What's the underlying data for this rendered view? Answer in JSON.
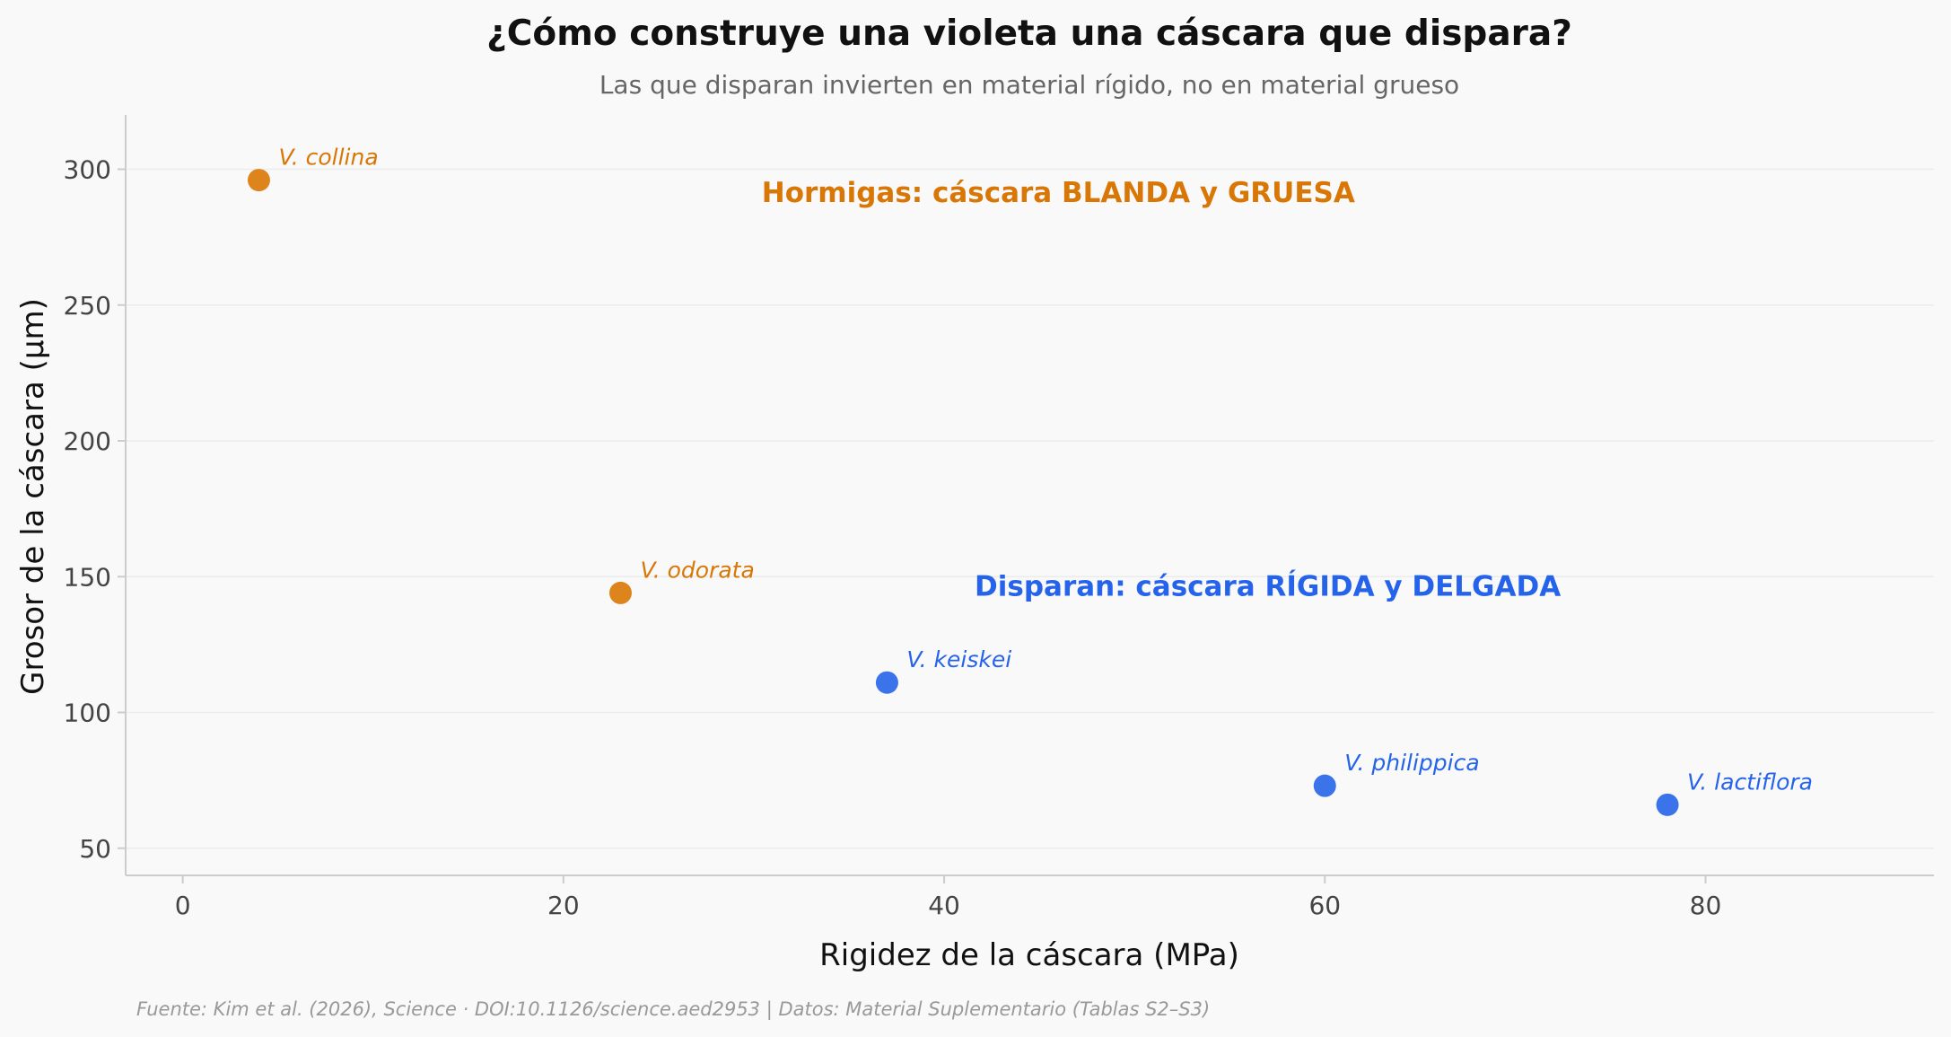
{
  "chart_data": {
    "type": "scatter",
    "title": "¿Cómo construye una violeta una cáscara que dispara?",
    "subtitle": "Las que disparan invierten en material rígido, no en material grueso",
    "xlabel": "Rigidez de la cáscara (MPa)",
    "ylabel": "Grosor de la cáscara (µm)",
    "xlim": [
      -3,
      92
    ],
    "ylim": [
      40,
      320
    ],
    "xticks": [
      0,
      20,
      40,
      60,
      80
    ],
    "yticks": [
      50,
      100,
      150,
      200,
      250,
      300
    ],
    "grid": "horizontal",
    "colors": {
      "ant": "#d97706",
      "shoot": "#2563eb"
    },
    "points": [
      {
        "label": "V. collina",
        "x": 4,
        "y": 296,
        "group": "ant"
      },
      {
        "label": "V. odorata",
        "x": 23,
        "y": 144,
        "group": "ant"
      },
      {
        "label": "V. keiskei",
        "x": 37,
        "y": 111,
        "group": "shoot"
      },
      {
        "label": "V. philippica",
        "x": 60,
        "y": 73,
        "group": "shoot"
      },
      {
        "label": "V. lactiflora",
        "x": 78,
        "y": 66,
        "group": "shoot"
      }
    ],
    "annotations": [
      {
        "text": "Hormigas: cáscara BLANDA y GRUESA",
        "x": 46,
        "y": 288,
        "group": "ant"
      },
      {
        "text": "Disparan: cáscara RÍGIDA y DELGADA",
        "x": 57,
        "y": 143,
        "group": "shoot"
      }
    ],
    "footer": "Fuente: Kim et al. (2026), Science · DOI:10.1126/science.aed2953 | Datos: Material Suplementario (Tablas S2–S3)"
  }
}
